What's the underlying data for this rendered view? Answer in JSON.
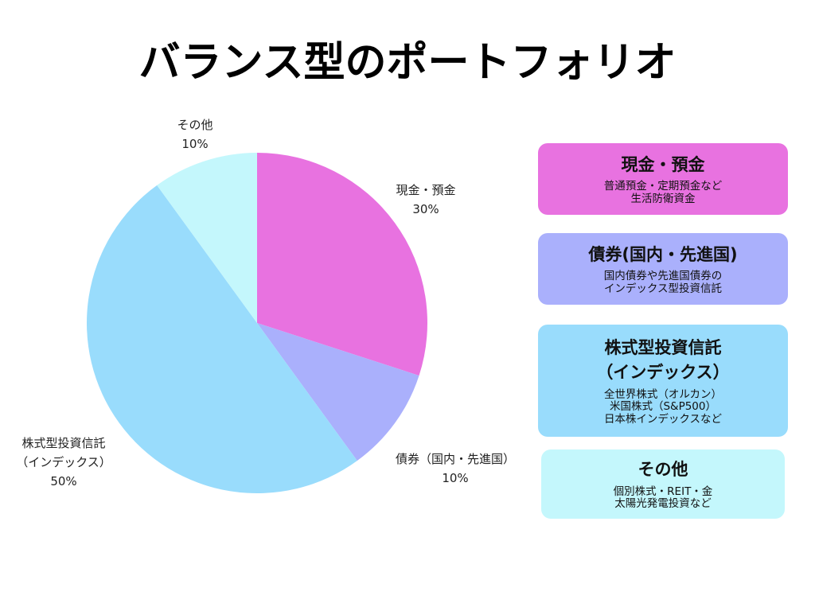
{
  "chart_data": {
    "type": "pie",
    "title": "バランス型のポートフォリオ",
    "categories": [
      "現金・預金",
      "債券（国内・先進国）",
      "株式型投資信託\n（インデックス）",
      "その他"
    ],
    "values": [
      30,
      10,
      50,
      10
    ],
    "value_labels": [
      "30%",
      "10%",
      "50%",
      "10%"
    ],
    "colors": [
      "#e872e0",
      "#aab0fc",
      "#99dcfc",
      "#c4f7fc"
    ]
  },
  "cards": [
    {
      "title": "現金・預金",
      "text": "普通預金・定期預金など\n生活防衛資金",
      "color": "#e872e0"
    },
    {
      "title": "債券(国内・先進国)",
      "text": "国内債券や先進国債券の\nインデックス型投資信託",
      "color": "#aab0fc"
    },
    {
      "title": "株式型投資信託\n（インデックス）",
      "text": "全世界株式（オルカン）\n米国株式（S&P500）\n日本株インデックスなど",
      "color": "#99dcfc"
    },
    {
      "title": "その他",
      "text": "個別株式・REIT・金\n太陽光発電投資など",
      "color": "#c4f7fc"
    }
  ]
}
